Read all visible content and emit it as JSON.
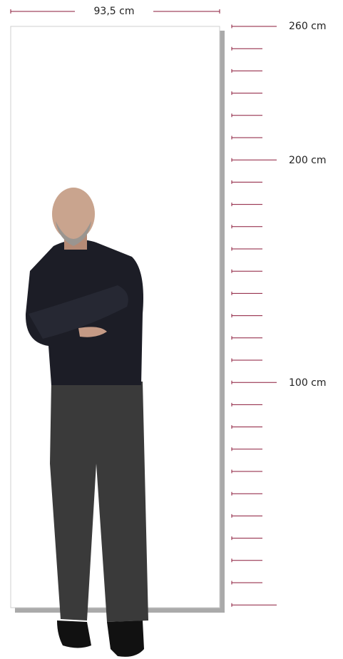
{
  "width_label": "93,5 cm",
  "scale": {
    "labels": [
      "260 cm",
      "200 cm",
      "100 cm"
    ]
  }
}
